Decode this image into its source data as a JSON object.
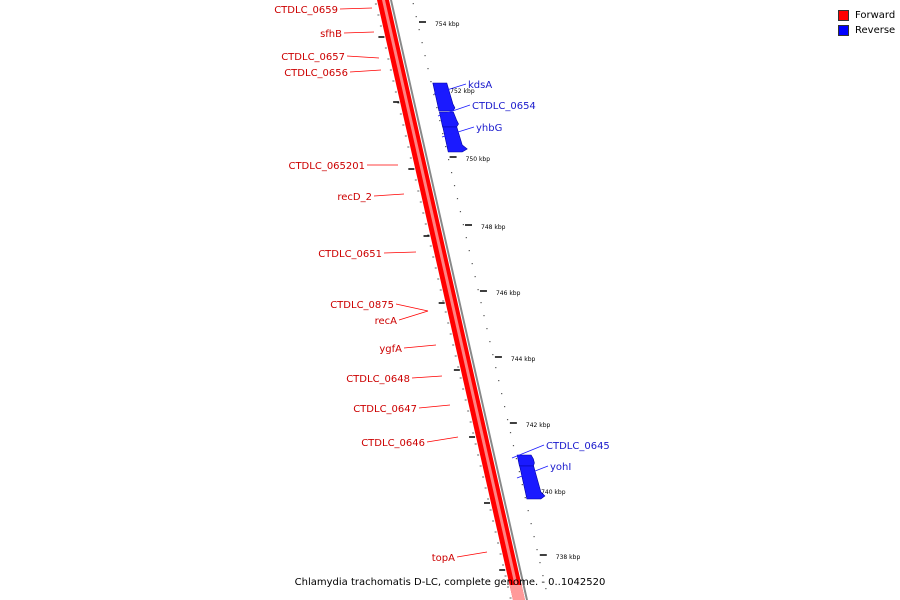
{
  "legend": [
    {
      "label": "Forward",
      "color": "#ff0000"
    },
    {
      "label": "Reverse",
      "color": "#0000ff"
    }
  ],
  "caption": "Chlamydia trachomatis D-LC, complete genome. - 0..1042520",
  "colors": {
    "forward": "#ff0000",
    "forward_light": "#ff9a9a",
    "reverse": "#1a1aff",
    "backbone": "#888888",
    "tick": "#000000"
  },
  "scale": {
    "ticks": [
      {
        "label": "754 kbp"
      },
      {
        "label": "752 kbp"
      },
      {
        "label": "750 kbp"
      },
      {
        "label": "748 kbp"
      },
      {
        "label": "746 kbp"
      },
      {
        "label": "744 kbp"
      },
      {
        "label": "742 kbp"
      },
      {
        "label": "740 kbp"
      },
      {
        "label": "738 kbp"
      }
    ]
  },
  "forward_genes": [
    {
      "label": "CTDLC_0659"
    },
    {
      "label": "sfhB"
    },
    {
      "label": "CTDLC_0657"
    },
    {
      "label": "CTDLC_0656"
    },
    {
      "label": "CTDLC_065201"
    },
    {
      "label": "recD_2"
    },
    {
      "label": "CTDLC_0651"
    },
    {
      "label": "CTDLC_0875"
    },
    {
      "label": "recA"
    },
    {
      "label": "ygfA"
    },
    {
      "label": "CTDLC_0648"
    },
    {
      "label": "CTDLC_0647"
    },
    {
      "label": "CTDLC_0646"
    },
    {
      "label": "topA"
    }
  ],
  "reverse_genes": [
    {
      "label": "kdsA"
    },
    {
      "label": "CTDLC_0654"
    },
    {
      "label": "yhbG"
    },
    {
      "label": "CTDLC_0645"
    },
    {
      "label": "yohI"
    }
  ]
}
